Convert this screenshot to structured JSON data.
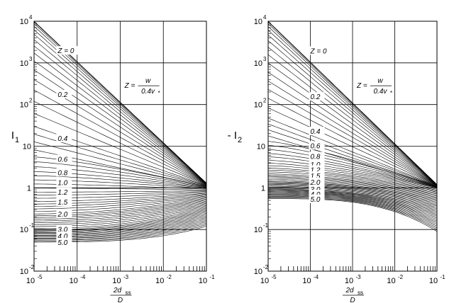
{
  "chart_data": [
    {
      "type": "line",
      "ylabel": "I",
      "ylabel_sub": "1",
      "xlabel_num": "2d",
      "xlabel_sub": "ss",
      "xlabel_den": "D",
      "formula": {
        "lhs": "Z =",
        "num": "w",
        "den": "0.4v",
        "den_sub": "*"
      },
      "x_scale": "log",
      "y_scale": "log",
      "xlim": [
        1e-05,
        0.1
      ],
      "ylim": [
        0.01,
        10000
      ],
      "x_ticks": [
        {
          "base": "10",
          "exp": "-5"
        },
        {
          "base": "10",
          "exp": "-4"
        },
        {
          "base": "10",
          "exp": "-3"
        },
        {
          "base": "10",
          "exp": "-2"
        },
        {
          "base": "10",
          "exp": "-1"
        }
      ],
      "y_ticks": [
        {
          "base": "10",
          "exp": "-2"
        },
        {
          "base": "10",
          "exp": "-1"
        },
        {
          "base": "1",
          "exp": ""
        },
        {
          "base": "10",
          "exp": ""
        },
        {
          "base": "10",
          "exp": "2"
        },
        {
          "base": "10",
          "exp": "3"
        },
        {
          "base": "10",
          "exp": "4"
        }
      ],
      "grid": true,
      "curve_labels": [
        {
          "text": "Z = 0",
          "z": 0.0
        },
        {
          "text": "0.2",
          "z": 0.2
        },
        {
          "text": "0.4",
          "z": 0.4
        },
        {
          "text": "0.6",
          "z": 0.6
        },
        {
          "text": "0.8",
          "z": 0.8
        },
        {
          "text": "1.0",
          "z": 1.0
        },
        {
          "text": "1.2",
          "z": 1.2
        },
        {
          "text": "1.5",
          "z": 1.5
        },
        {
          "text": "2.0",
          "z": 2.0
        },
        {
          "text": "3.0",
          "z": 3.0
        },
        {
          "text": "4.0",
          "z": 4.0
        },
        {
          "text": "5.0",
          "z": 5.0
        }
      ],
      "series_summary": {
        "z_min": 0.0,
        "z_max": 5.0,
        "value_at_xmin": [
          {
            "z": 0.0,
            "y": 10000
          },
          {
            "z": 0.2,
            "y": 530
          },
          {
            "z": 0.4,
            "y": 28
          },
          {
            "z": 0.6,
            "y": 6.0
          },
          {
            "z": 0.8,
            "y": 2.6
          },
          {
            "z": 1.0,
            "y": 1.4
          },
          {
            "z": 1.2,
            "y": 0.8
          },
          {
            "z": 1.5,
            "y": 0.45
          },
          {
            "z": 2.0,
            "y": 0.23
          },
          {
            "z": 3.0,
            "y": 0.1
          },
          {
            "z": 4.0,
            "y": 0.07
          },
          {
            "z": 5.0,
            "y": 0.05
          }
        ],
        "value_at_xmax": [
          {
            "z": 0.0,
            "y": 1.3
          },
          {
            "z": 1.0,
            "y": 0.95
          },
          {
            "z": 5.0,
            "y": 0.12
          }
        ]
      }
    },
    {
      "type": "line",
      "ylabel": "- I",
      "ylabel_sub": "2",
      "xlabel_num": "2d",
      "xlabel_sub": "ss",
      "xlabel_den": "D",
      "formula": {
        "lhs": "Z =",
        "num": "w",
        "den": "0.4v",
        "den_sub": "*"
      },
      "x_scale": "log",
      "y_scale": "log",
      "xlim": [
        1e-05,
        0.1
      ],
      "ylim": [
        0.01,
        10000
      ],
      "x_ticks": [
        {
          "base": "10",
          "exp": "-5"
        },
        {
          "base": "10",
          "exp": "-4"
        },
        {
          "base": "10",
          "exp": "-3"
        },
        {
          "base": "10",
          "exp": "-2"
        },
        {
          "base": "10",
          "exp": "-1"
        }
      ],
      "y_ticks": [
        {
          "base": "10",
          "exp": "-2"
        },
        {
          "base": "10",
          "exp": "-1"
        },
        {
          "base": "1",
          "exp": ""
        },
        {
          "base": "10",
          "exp": ""
        },
        {
          "base": "10",
          "exp": "2"
        },
        {
          "base": "10",
          "exp": "3"
        },
        {
          "base": "10",
          "exp": "4"
        }
      ],
      "grid": true,
      "curve_labels": [
        {
          "text": "Z = 0",
          "z": 0.0
        },
        {
          "text": "0.2",
          "z": 0.2
        },
        {
          "text": "0.4",
          "z": 0.4
        },
        {
          "text": "0.6",
          "z": 0.6
        },
        {
          "text": "0.8",
          "z": 0.8
        },
        {
          "text": "1.0",
          "z": 1.0
        },
        {
          "text": "1.2",
          "z": 1.2
        },
        {
          "text": "1.5",
          "z": 1.5
        },
        {
          "text": "2.0",
          "z": 2.0
        },
        {
          "text": "3.0",
          "z": 3.0
        },
        {
          "text": "4.0",
          "z": 4.0
        },
        {
          "text": "5.0",
          "z": 5.0
        }
      ],
      "series_summary": {
        "z_min": 0.0,
        "z_max": 5.0,
        "value_at_xmin": [
          {
            "z": 0.0,
            "y": 10000
          },
          {
            "z": 0.2,
            "y": 460
          },
          {
            "z": 0.4,
            "y": 45
          },
          {
            "z": 0.6,
            "y": 14
          },
          {
            "z": 0.8,
            "y": 7
          },
          {
            "z": 1.0,
            "y": 4.2
          },
          {
            "z": 1.2,
            "y": 3.0
          },
          {
            "z": 1.5,
            "y": 2.1
          },
          {
            "z": 2.0,
            "y": 1.45
          },
          {
            "z": 3.0,
            "y": 0.95
          },
          {
            "z": 4.0,
            "y": 0.72
          },
          {
            "z": 5.0,
            "y": 0.55
          }
        ],
        "value_at_xmax": [
          {
            "z": 0.0,
            "y": 1.2
          },
          {
            "z": 1.0,
            "y": 1.0
          },
          {
            "z": 5.0,
            "y": 0.09
          }
        ]
      }
    }
  ]
}
